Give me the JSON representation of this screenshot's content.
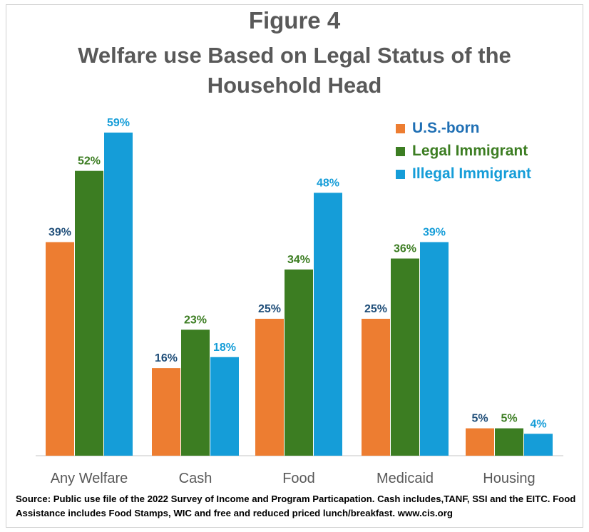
{
  "title": {
    "line1": "Figure 4",
    "line2": "Welfare use Based on Legal Status of the",
    "line3": "Household Head"
  },
  "chart_data": {
    "type": "bar",
    "title": "Welfare use Based on Legal Status of the Household Head",
    "categories": [
      "Any Welfare",
      "Cash",
      "Food",
      "Medicaid",
      "Housing"
    ],
    "series": [
      {
        "name": "U.S.-born",
        "color": "#ED7D31",
        "label_color": "#1F4E79",
        "values": [
          39,
          16,
          25,
          25,
          5
        ]
      },
      {
        "name": "Legal Immigrant",
        "color": "#3C7D22",
        "label_color": "#3C7D22",
        "values": [
          52,
          23,
          34,
          36,
          5
        ]
      },
      {
        "name": "Illegal Immigrant",
        "color": "#159DD8",
        "label_color": "#159DD8",
        "values": [
          59,
          18,
          48,
          39,
          4
        ]
      }
    ],
    "value_suffix": "%",
    "ylim": [
      0,
      60
    ],
    "grid": false,
    "legend_position": "top-right",
    "xlabel": "",
    "ylabel": ""
  },
  "legend": {
    "items": [
      {
        "label": "U.S.-born",
        "color": "#ED7D31",
        "text_color": "#1F6FB4"
      },
      {
        "label": "Legal Immigrant",
        "color": "#3C7D22",
        "text_color": "#3C7D22"
      },
      {
        "label": "Illegal Immigrant",
        "color": "#159DD8",
        "text_color": "#159DD8"
      }
    ]
  },
  "source": {
    "text": "Source: Public use file of the 2022 Survey of Income and Program Particapation.  Cash includes,TANF, SSI and the EITC.  Food Assistance includes Food Stamps, WIC and free and reduced priced lunch/breakfast.  www.cis.org"
  }
}
